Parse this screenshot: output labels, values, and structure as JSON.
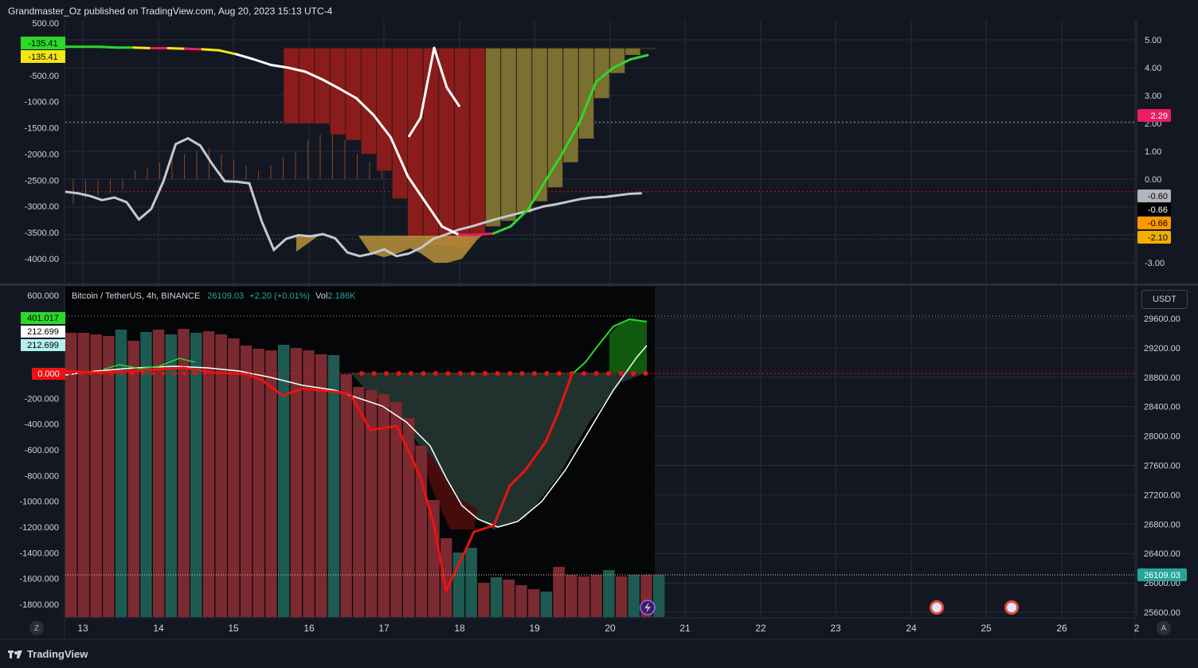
{
  "header": {
    "text": "Grandmaster_Oz published on TradingView.com, Aug 20, 2023 15:13 UTC-4"
  },
  "footer": {
    "brand": "TradingView",
    "logo": "tradingview-logo-icon"
  },
  "colors": {
    "background": "#131722",
    "gridline": "#2a2e39",
    "dark_red": "#8b1c1c",
    "olive": "#7a7030",
    "gold": "#b8923a",
    "green_line": "#2bd92b",
    "red_line": "#ee1111",
    "up_bar": "#1d5a52",
    "down_bar": "#7a2a30",
    "price_label": "#26a69a"
  },
  "legend": {
    "symbol": "Bitcoin / TetherUS, 4h, BINANCE",
    "price": "26109.03",
    "change": "+2.20 (+0.01%)",
    "vol_label": "Vol",
    "vol_value": "2.186K"
  },
  "currency_button": "USDT",
  "corner_buttons": {
    "left": "Z",
    "right": "A"
  },
  "chart_data": [
    {
      "type": "bar",
      "pane": "top",
      "left_axis_ticks": [
        "500.00",
        "-500.00",
        "-1000.00",
        "-1500.00",
        "-2000.00",
        "-2500.00",
        "-3000.00",
        "-3500.00",
        "-4000.00"
      ],
      "right_axis_ticks": [
        "5.00",
        "4.00",
        "3.00",
        "2.00",
        "1.00",
        "0.00",
        "-1.00",
        "-2.00",
        "-3.00"
      ],
      "left_badges": [
        {
          "text": "-135.41",
          "color": "#2bd92b"
        },
        {
          "text": "-135.41",
          "color": "#f5e616"
        }
      ],
      "right_badges": [
        {
          "text": "2.29",
          "color": "#e91e63",
          "fg": "#ffffff"
        },
        {
          "text": "-0.60",
          "color": "#b2b5be",
          "fg": "#000000"
        },
        {
          "text": "-0.66",
          "color": "#000000",
          "fg": "#ffffff"
        },
        {
          "text": "-0.66",
          "color": "#ff9800",
          "fg": "#000000"
        },
        {
          "text": "-2.10",
          "color": "#f0b000",
          "fg": "#000000"
        }
      ],
      "oscillator_left_units": [
        -2720,
        -2750,
        -2800,
        -2880,
        -2830,
        -2920,
        -3250,
        -3050,
        -2520,
        -1810,
        -1700,
        -1840,
        -2200,
        -2520,
        -2530,
        -2560,
        -3280,
        -3830,
        -3620,
        -3550,
        -3570,
        -3530,
        -3610,
        -3880,
        -3950,
        -3900,
        -3820,
        -3950,
        -3900,
        -3790,
        -3620,
        -3540,
        -3450,
        -3390,
        -3320,
        -3250,
        -3190,
        -3130,
        -3070,
        -3000,
        -2960,
        -2910,
        -2860,
        -2830,
        -2820,
        -2790,
        -2760,
        -2750
      ],
      "momentum_right_units": [
        4.75,
        4.75,
        4.75,
        4.72,
        4.72,
        4.7,
        4.7,
        4.68,
        4.66,
        4.62,
        4.48,
        4.3,
        4.1,
        4.0,
        3.86,
        3.58,
        3.25,
        2.9,
        2.3,
        1.5,
        0.1,
        -0.8,
        -1.7,
        -2.0,
        -2.0,
        -1.95,
        -1.7,
        -1.1,
        -0.1,
        0.9,
        2.0,
        3.5,
        4.0,
        4.3,
        4.45
      ],
      "histogram_right_units": [
        2.0,
        2.0,
        2.0,
        1.6,
        1.4,
        0.9,
        0.3,
        -0.7,
        -2.1,
        -2.35,
        -2.4,
        -2.45,
        -2.0,
        -1.7,
        -1.5,
        -1.2,
        -0.8,
        -0.3,
        0.6,
        1.45,
        2.9,
        3.8,
        4.45,
        4.75
      ]
    },
    {
      "type": "bar",
      "pane": "bottom",
      "left_axis_ticks": [
        "600.000",
        "200.000",
        "-200.000",
        "-400.000",
        "-600.000",
        "-800.000",
        "-1000.000",
        "-1200.000",
        "-1400.000",
        "-1600.000",
        "-1800.000"
      ],
      "left_badges": [
        {
          "text": "401.017",
          "color": "#2bd92b",
          "fg": "#000000"
        },
        {
          "text": "212.699",
          "color": "#ffffff",
          "fg": "#000000"
        },
        {
          "text": "212.699",
          "color": "#b2f0f0",
          "fg": "#000000"
        },
        {
          "text": "0.000",
          "color": "#ee1111",
          "fg": "#ffffff"
        }
      ],
      "right_axis_ticks": [
        "29600.00",
        "29200.00",
        "28800.00",
        "28400.00",
        "28000.00",
        "27600.00",
        "27200.00",
        "26800.00",
        "26400.00",
        "26000.00",
        "25600.00"
      ],
      "price_badge": "26109.03",
      "x_ticks": [
        "13",
        "14",
        "15",
        "16",
        "17",
        "18",
        "19",
        "20",
        "21",
        "22",
        "23",
        "24",
        "25",
        "26",
        "2"
      ],
      "candles_up": [
        false,
        false,
        false,
        false,
        true,
        false,
        true,
        false,
        true,
        false,
        true,
        false,
        false,
        false,
        false,
        false,
        false,
        true,
        false,
        false,
        false,
        true,
        false,
        false,
        false,
        false,
        false,
        false,
        false,
        false,
        false,
        true,
        true,
        false,
        true,
        false,
        false,
        false,
        true,
        false,
        false,
        false,
        false,
        true,
        false,
        true,
        false,
        true
      ]
    }
  ]
}
